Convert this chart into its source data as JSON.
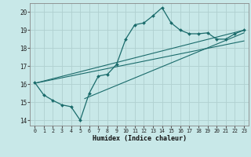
{
  "title": "",
  "xlabel": "Humidex (Indice chaleur)",
  "ylabel": "",
  "bg_color": "#c8e8e8",
  "grid_color": "#b0d0d0",
  "line_color": "#1a6b6b",
  "xlim": [
    -0.5,
    23.5
  ],
  "ylim": [
    13.7,
    20.5
  ],
  "xticks": [
    0,
    1,
    2,
    3,
    4,
    5,
    6,
    7,
    8,
    9,
    10,
    11,
    12,
    13,
    14,
    15,
    16,
    17,
    18,
    19,
    20,
    21,
    22,
    23
  ],
  "yticks": [
    14,
    15,
    16,
    17,
    18,
    19,
    20
  ],
  "main_x": [
    0,
    1,
    2,
    3,
    4,
    5,
    6,
    7,
    8,
    9,
    10,
    11,
    12,
    13,
    14,
    15,
    16,
    17,
    18,
    19,
    20,
    21,
    22,
    23
  ],
  "main_y": [
    16.1,
    15.4,
    15.1,
    14.85,
    14.75,
    14.0,
    15.5,
    16.45,
    16.55,
    17.1,
    18.5,
    19.3,
    19.4,
    19.8,
    20.25,
    19.4,
    19.0,
    18.8,
    18.8,
    18.85,
    18.5,
    18.5,
    18.8,
    19.0
  ],
  "line1_x": [
    0,
    23
  ],
  "line1_y": [
    16.05,
    18.4
  ],
  "line2_x": [
    0,
    23
  ],
  "line2_y": [
    16.05,
    19.0
  ],
  "line3_x": [
    5.5,
    23
  ],
  "line3_y": [
    15.2,
    18.85
  ]
}
